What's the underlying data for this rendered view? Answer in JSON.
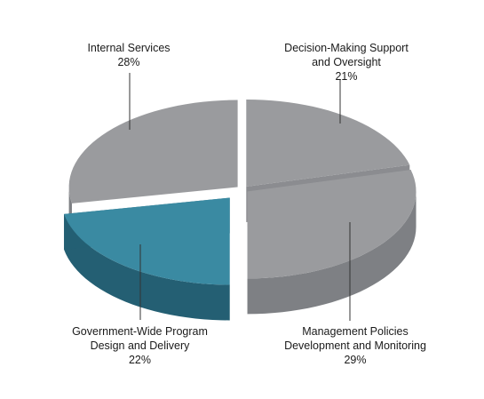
{
  "chart_data": {
    "type": "pie",
    "slices": [
      {
        "label_lines": [
          "Decision-Making Support",
          "and Oversight"
        ],
        "value_text": "21%",
        "value": 21,
        "color": "#9a9b9e",
        "exploded": false
      },
      {
        "label_lines": [
          "Management Policies",
          "Development and Monitoring"
        ],
        "value_text": "29%",
        "value": 29,
        "color": "#9a9b9e",
        "exploded": false
      },
      {
        "label_lines": [
          "Government-Wide Program",
          "Design and Delivery"
        ],
        "value_text": "22%",
        "value": 22,
        "color": "#3a8aa2",
        "exploded": true
      },
      {
        "label_lines": [
          "Internal Services"
        ],
        "value_text": "28%",
        "value": 28,
        "color": "#9a9b9e",
        "exploded": false
      }
    ],
    "colors": {
      "grey_top": "#9a9b9e",
      "grey_side": "#7e8084",
      "teal_top": "#3a8aa2",
      "teal_side": "#245f73"
    }
  }
}
